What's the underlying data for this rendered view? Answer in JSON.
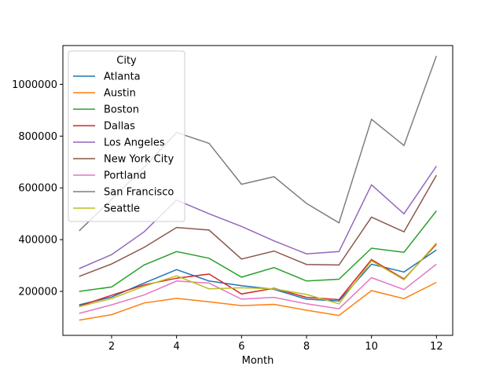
{
  "chart_data": {
    "type": "line",
    "title": "",
    "xlabel": "Month",
    "ylabel": "",
    "legend_title": "City",
    "legend_position": "top-left",
    "grid": false,
    "xlim": [
      0.5,
      12.5
    ],
    "ylim": [
      30000,
      1150000
    ],
    "x_ticks": [
      2,
      4,
      6,
      8,
      10,
      12
    ],
    "y_ticks": [
      200000,
      400000,
      600000,
      800000,
      1000000
    ],
    "x": [
      1,
      2,
      3,
      4,
      5,
      6,
      7,
      8,
      9,
      10,
      11,
      12
    ],
    "series": [
      {
        "name": "Atlanta",
        "color": "#1f77b4",
        "values": [
          148000,
          178000,
          232000,
          284000,
          240000,
          222000,
          208000,
          170000,
          163000,
          305000,
          275000,
          360000
        ]
      },
      {
        "name": "Austin",
        "color": "#ff7f0e",
        "values": [
          89000,
          110000,
          155000,
          173000,
          160000,
          145000,
          150000,
          127000,
          107000,
          203000,
          172000,
          235000
        ]
      },
      {
        "name": "Boston",
        "color": "#2ca02c",
        "values": [
          200000,
          217000,
          302000,
          354000,
          328000,
          255000,
          292000,
          240000,
          247000,
          367000,
          351000,
          511000
        ]
      },
      {
        "name": "Dallas",
        "color": "#d62728",
        "values": [
          143000,
          185000,
          225000,
          251000,
          267000,
          190000,
          212000,
          177000,
          168000,
          323000,
          248000,
          382000
        ]
      },
      {
        "name": "Los Angeles",
        "color": "#9467bd",
        "values": [
          288000,
          342000,
          430000,
          553000,
          500000,
          451000,
          395000,
          345000,
          354000,
          612000,
          500000,
          684000
        ]
      },
      {
        "name": "New York City",
        "color": "#8c564b",
        "values": [
          258000,
          306000,
          370000,
          447000,
          437000,
          325000,
          356000,
          304000,
          302000,
          487000,
          430000,
          649000
        ]
      },
      {
        "name": "Portland",
        "color": "#e377c2",
        "values": [
          115000,
          148000,
          186000,
          240000,
          232000,
          170000,
          177000,
          152000,
          133000,
          253000,
          207000,
          305000
        ]
      },
      {
        "name": "San Francisco",
        "color": "#7f7f7f",
        "values": [
          434000,
          555000,
          680000,
          814000,
          772000,
          614000,
          643000,
          540000,
          465000,
          865000,
          764000,
          1110000
        ]
      },
      {
        "name": "Seattle",
        "color": "#bcbd22",
        "values": [
          141000,
          172000,
          220000,
          260000,
          210000,
          214000,
          210000,
          188000,
          152000,
          318000,
          245000,
          387000
        ]
      }
    ]
  }
}
